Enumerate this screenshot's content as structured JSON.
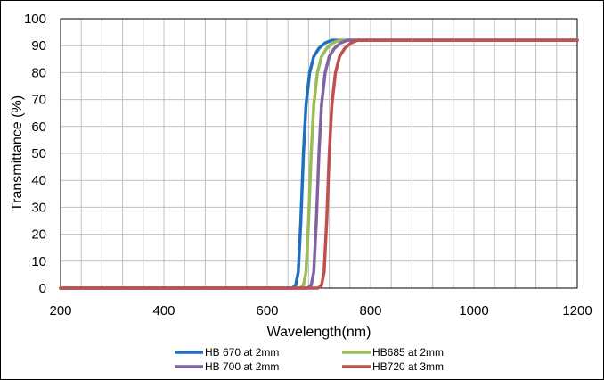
{
  "chart_data": {
    "type": "line",
    "title": "",
    "xlabel": "Wavelength(nm)",
    "ylabel": "Transmittance (%)",
    "xlim": [
      200,
      1200
    ],
    "ylim": [
      0,
      100
    ],
    "x_ticks": [
      200,
      400,
      600,
      800,
      1000,
      1200
    ],
    "y_ticks": [
      0,
      10,
      20,
      30,
      40,
      50,
      60,
      70,
      80,
      90,
      100
    ],
    "x_minor_step": 40,
    "grid": true,
    "legend_position": "bottom",
    "series": [
      {
        "name": "HB 670 at 2mm",
        "color": "#1f6fc0",
        "points": [
          [
            200,
            0
          ],
          [
            648,
            0
          ],
          [
            655,
            1
          ],
          [
            660,
            6
          ],
          [
            665,
            25
          ],
          [
            670,
            50
          ],
          [
            675,
            68
          ],
          [
            682,
            80
          ],
          [
            690,
            86
          ],
          [
            700,
            89
          ],
          [
            712,
            91
          ],
          [
            725,
            92
          ],
          [
            1200,
            92
          ]
        ]
      },
      {
        "name": "HB685 at 2mm",
        "color": "#9bbb59",
        "points": [
          [
            200,
            0
          ],
          [
            663,
            0
          ],
          [
            670,
            1
          ],
          [
            675,
            6
          ],
          [
            680,
            25
          ],
          [
            685,
            50
          ],
          [
            690,
            68
          ],
          [
            697,
            80
          ],
          [
            705,
            86
          ],
          [
            715,
            89
          ],
          [
            727,
            91
          ],
          [
            740,
            92
          ],
          [
            1200,
            92
          ]
        ]
      },
      {
        "name": "HB 700 at 2mm",
        "color": "#8064a2",
        "points": [
          [
            200,
            0
          ],
          [
            678,
            0
          ],
          [
            685,
            1
          ],
          [
            690,
            6
          ],
          [
            695,
            25
          ],
          [
            700,
            50
          ],
          [
            705,
            68
          ],
          [
            712,
            80
          ],
          [
            720,
            86
          ],
          [
            730,
            89
          ],
          [
            742,
            91
          ],
          [
            755,
            92
          ],
          [
            1200,
            92
          ]
        ]
      },
      {
        "name": "HB720 at 3mm",
        "color": "#c0504d",
        "points": [
          [
            200,
            0
          ],
          [
            698,
            0
          ],
          [
            705,
            1
          ],
          [
            710,
            6
          ],
          [
            715,
            25
          ],
          [
            720,
            50
          ],
          [
            725,
            68
          ],
          [
            732,
            80
          ],
          [
            740,
            86
          ],
          [
            750,
            89
          ],
          [
            762,
            91
          ],
          [
            775,
            92
          ],
          [
            1200,
            92
          ]
        ]
      }
    ]
  }
}
